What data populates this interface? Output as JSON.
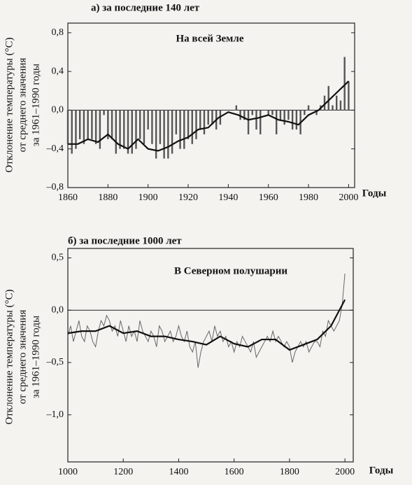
{
  "chart_data": [
    {
      "type": "bar",
      "title": "а) за последние 140 лет",
      "annotation": "На всей Земле",
      "ylabel": [
        "Отклонение температуры (°C)",
        "от среднего значения",
        "за 1961–1990 годы"
      ],
      "xlabel": "Годы",
      "xlim": [
        1860,
        2003
      ],
      "xticks": [
        1860,
        1880,
        1900,
        1920,
        1940,
        1960,
        1980,
        2000
      ],
      "ylim": [
        -0.8,
        0.9
      ],
      "yticks": [
        {
          "value": -0.8,
          "label": "–0,8"
        },
        {
          "value": -0.4,
          "label": "–0,4"
        },
        {
          "value": 0.0,
          "label": "0,0"
        },
        {
          "value": 0.4,
          "label": "0,4"
        },
        {
          "value": 0.8,
          "label": "0,8"
        }
      ],
      "series": [
        {
          "type": "bar",
          "color": "#555555",
          "x": [
            1860,
            1862,
            1864,
            1866,
            1868,
            1870,
            1872,
            1874,
            1876,
            1878,
            1880,
            1882,
            1884,
            1886,
            1888,
            1890,
            1892,
            1894,
            1896,
            1898,
            1900,
            1902,
            1904,
            1906,
            1908,
            1910,
            1912,
            1914,
            1916,
            1918,
            1920,
            1922,
            1924,
            1926,
            1928,
            1930,
            1932,
            1934,
            1936,
            1938,
            1940,
            1942,
            1944,
            1946,
            1948,
            1950,
            1952,
            1954,
            1956,
            1958,
            1960,
            1962,
            1964,
            1966,
            1968,
            1970,
            1972,
            1974,
            1976,
            1978,
            1980,
            1982,
            1984,
            1986,
            1988,
            1990,
            1992,
            1994,
            1996,
            1998,
            2000
          ],
          "values": [
            -0.35,
            -0.45,
            -0.4,
            -0.3,
            -0.35,
            -0.3,
            -0.3,
            -0.35,
            -0.4,
            -0.05,
            -0.3,
            -0.3,
            -0.45,
            -0.4,
            -0.4,
            -0.45,
            -0.45,
            -0.4,
            -0.3,
            -0.35,
            -0.2,
            -0.35,
            -0.5,
            -0.35,
            -0.5,
            -0.5,
            -0.45,
            -0.25,
            -0.4,
            -0.4,
            -0.3,
            -0.35,
            -0.3,
            -0.2,
            -0.25,
            -0.15,
            -0.15,
            -0.2,
            -0.15,
            0.0,
            0.0,
            0.0,
            0.05,
            -0.1,
            -0.1,
            -0.25,
            -0.05,
            -0.2,
            -0.25,
            0.0,
            -0.05,
            -0.05,
            -0.25,
            -0.1,
            -0.15,
            -0.1,
            -0.2,
            -0.2,
            -0.25,
            -0.05,
            0.05,
            0.0,
            -0.05,
            0.05,
            0.15,
            0.25,
            0.05,
            0.15,
            0.1,
            0.55,
            0.3
          ]
        },
        {
          "type": "line",
          "color": "#111111",
          "x": [
            1860,
            1865,
            1870,
            1875,
            1880,
            1885,
            1890,
            1895,
            1900,
            1905,
            1910,
            1915,
            1920,
            1925,
            1930,
            1935,
            1940,
            1945,
            1950,
            1955,
            1960,
            1965,
            1970,
            1975,
            1980,
            1985,
            1990,
            1995,
            2000
          ],
          "values": [
            -0.35,
            -0.35,
            -0.3,
            -0.33,
            -0.25,
            -0.35,
            -0.4,
            -0.3,
            -0.4,
            -0.42,
            -0.38,
            -0.32,
            -0.28,
            -0.2,
            -0.18,
            -0.08,
            -0.02,
            -0.05,
            -0.1,
            -0.08,
            -0.05,
            -0.1,
            -0.12,
            -0.15,
            -0.05,
            0.0,
            0.1,
            0.2,
            0.3
          ]
        }
      ]
    },
    {
      "type": "line",
      "title": "б) за последние 1000 лет",
      "annotation": "В Северном полушарии",
      "ylabel": [
        "Отклонение температуры (°C)",
        "от среднего значения",
        "за 1961–1990 годы"
      ],
      "xlabel": "Годы",
      "xlim": [
        1000,
        2030
      ],
      "xticks": [
        1000,
        1200,
        1400,
        1600,
        1800,
        2000
      ],
      "ylim": [
        -1.45,
        0.59
      ],
      "yticks": [
        {
          "value": -1.0,
          "label": "–1,0"
        },
        {
          "value": -0.5,
          "label": "–0,5"
        },
        {
          "value": 0.0,
          "label": "0,0"
        },
        {
          "value": 0.5,
          "label": "0,5"
        }
      ],
      "series": [
        {
          "type": "line",
          "color": "#666666",
          "x": [
            1000,
            1010,
            1020,
            1030,
            1040,
            1050,
            1060,
            1070,
            1080,
            1090,
            1100,
            1110,
            1120,
            1130,
            1140,
            1150,
            1160,
            1170,
            1180,
            1190,
            1200,
            1210,
            1220,
            1230,
            1240,
            1250,
            1260,
            1270,
            1280,
            1290,
            1300,
            1310,
            1320,
            1330,
            1340,
            1350,
            1360,
            1370,
            1380,
            1390,
            1400,
            1410,
            1420,
            1430,
            1440,
            1450,
            1460,
            1470,
            1480,
            1490,
            1500,
            1510,
            1520,
            1530,
            1540,
            1550,
            1560,
            1570,
            1580,
            1590,
            1600,
            1610,
            1620,
            1630,
            1640,
            1650,
            1660,
            1670,
            1680,
            1690,
            1700,
            1710,
            1720,
            1730,
            1740,
            1750,
            1760,
            1770,
            1780,
            1790,
            1800,
            1810,
            1820,
            1830,
            1840,
            1850,
            1860,
            1870,
            1880,
            1890,
            1900,
            1910,
            1920,
            1930,
            1940,
            1950,
            1960,
            1970,
            1980,
            1990,
            2000
          ],
          "values": [
            -0.25,
            -0.15,
            -0.3,
            -0.2,
            -0.1,
            -0.25,
            -0.3,
            -0.15,
            -0.2,
            -0.3,
            -0.35,
            -0.2,
            -0.1,
            -0.15,
            -0.05,
            -0.1,
            -0.2,
            -0.15,
            -0.25,
            -0.1,
            -0.2,
            -0.3,
            -0.15,
            -0.25,
            -0.2,
            -0.3,
            -0.1,
            -0.2,
            -0.25,
            -0.3,
            -0.2,
            -0.25,
            -0.35,
            -0.15,
            -0.2,
            -0.3,
            -0.25,
            -0.2,
            -0.3,
            -0.25,
            -0.15,
            -0.25,
            -0.3,
            -0.2,
            -0.35,
            -0.4,
            -0.3,
            -0.55,
            -0.4,
            -0.3,
            -0.25,
            -0.2,
            -0.3,
            -0.15,
            -0.25,
            -0.2,
            -0.3,
            -0.25,
            -0.35,
            -0.3,
            -0.4,
            -0.3,
            -0.35,
            -0.25,
            -0.3,
            -0.35,
            -0.4,
            -0.3,
            -0.45,
            -0.4,
            -0.35,
            -0.3,
            -0.25,
            -0.3,
            -0.2,
            -0.3,
            -0.25,
            -0.3,
            -0.35,
            -0.3,
            -0.35,
            -0.5,
            -0.4,
            -0.35,
            -0.3,
            -0.35,
            -0.3,
            -0.4,
            -0.35,
            -0.3,
            -0.3,
            -0.35,
            -0.2,
            -0.25,
            -0.1,
            -0.15,
            -0.2,
            -0.15,
            -0.1,
            0.05,
            0.35
          ]
        },
        {
          "type": "line",
          "color": "#111111",
          "x": [
            1000,
            1050,
            1100,
            1150,
            1200,
            1250,
            1300,
            1350,
            1400,
            1450,
            1500,
            1550,
            1600,
            1650,
            1700,
            1750,
            1800,
            1850,
            1900,
            1950,
            2000
          ],
          "values": [
            -0.22,
            -0.2,
            -0.2,
            -0.15,
            -0.22,
            -0.2,
            -0.25,
            -0.25,
            -0.28,
            -0.3,
            -0.33,
            -0.25,
            -0.32,
            -0.35,
            -0.28,
            -0.28,
            -0.38,
            -0.33,
            -0.28,
            -0.15,
            0.1
          ]
        }
      ]
    }
  ]
}
